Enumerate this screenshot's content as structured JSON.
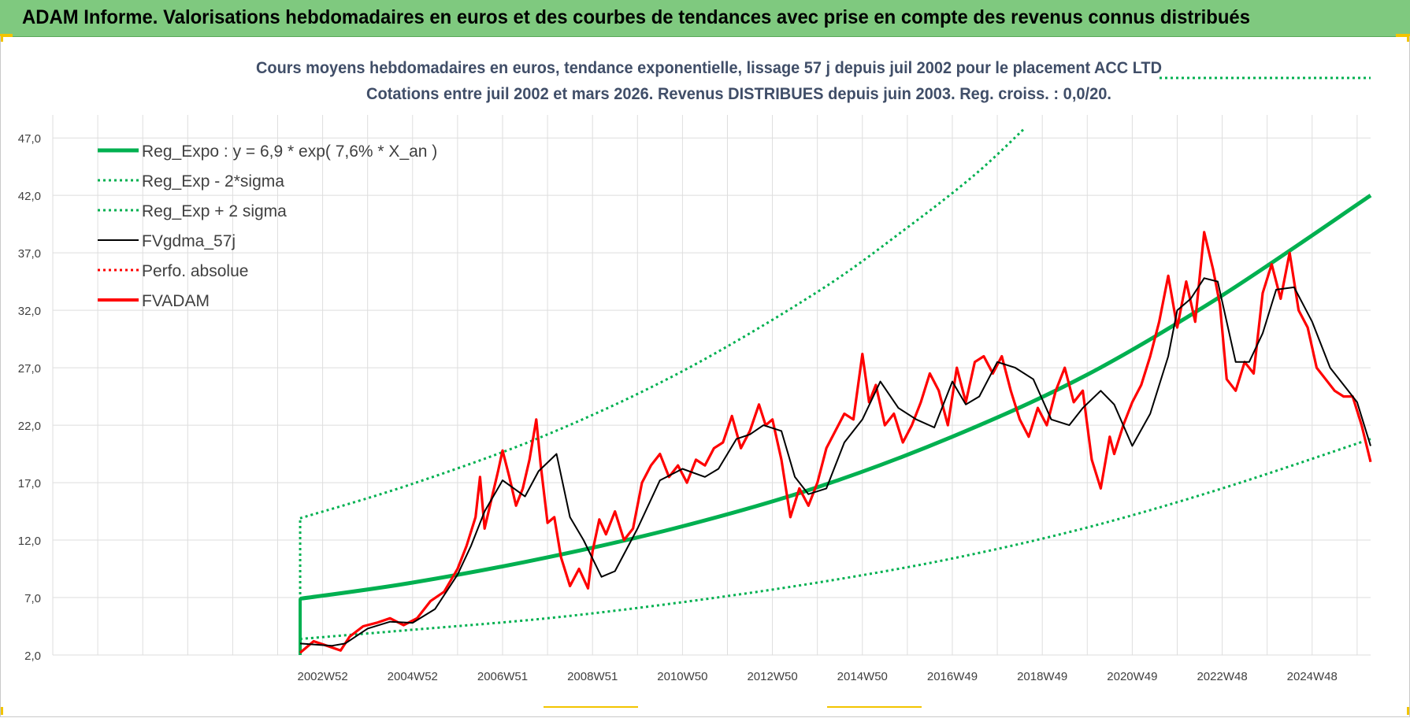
{
  "header": {
    "title": "ADAM Informe. Valorisations hebdomadaires en euros et des courbes de tendances avec prise en compte des revenus connus distribués"
  },
  "chart_data": {
    "type": "line",
    "title": "Cours moyens hebdomadaires en euros, tendance exponentielle, lissage 57 j depuis juil 2002 pour le placement ACC LTD",
    "subtitle": "Cotations entre juil 2002 et mars 2026. Revenus DISTRIBUES depuis juin 2003. Reg. croiss. : 0,0/20.",
    "xlabel": "",
    "ylabel": "",
    "ylim": [
      2,
      49
    ],
    "xlim": [
      1997.0,
      2026.3
    ],
    "grid": true,
    "legend_position": "top-left",
    "y_ticks": [
      "2,0",
      "7,0",
      "12,0",
      "17,0",
      "22,0",
      "27,0",
      "32,0",
      "37,0",
      "42,0",
      "47,0"
    ],
    "y_tick_values": [
      2,
      7,
      12,
      17,
      22,
      27,
      32,
      37,
      42,
      47
    ],
    "x_ticks": [
      "2002W52",
      "2004W52",
      "2006W51",
      "2008W51",
      "2010W50",
      "2012W50",
      "2014W50",
      "2016W49",
      "2018W49",
      "2020W49",
      "2022W48",
      "2024W48"
    ],
    "x_tick_positions": [
      2003.0,
      2005.0,
      2007.0,
      2009.0,
      2011.0,
      2013.0,
      2015.0,
      2017.0,
      2019.0,
      2021.0,
      2023.0,
      2025.0
    ],
    "series": [
      {
        "name": "Reg_Expo : y = 6,9 * exp( 7,6% *  X_an )",
        "color": "#00b050",
        "style": "solid-thick",
        "x": [
          2002.5,
          2005.0,
          2008.0,
          2011.0,
          2014.0,
          2017.0,
          2020.0,
          2023.0,
          2026.3
        ],
        "values": [
          6.9,
          8.3,
          10.5,
          13.2,
          16.6,
          21.0,
          26.4,
          33.3,
          42.0
        ]
      },
      {
        "name": "Reg_Exp - 2*sigma",
        "color": "#00b050",
        "style": "dotted",
        "x": [
          2002.5,
          2005.0,
          2008.0,
          2011.0,
          2014.0,
          2017.0,
          2020.0,
          2023.0,
          2026.3
        ],
        "values": [
          3.4,
          4.2,
          5.2,
          6.6,
          8.3,
          10.4,
          13.1,
          16.5,
          20.8
        ]
      },
      {
        "name": "Reg_Exp + 2 sigma",
        "color": "#00b050",
        "style": "dotted",
        "x": [
          2002.5,
          2005.0,
          2008.0,
          2011.0,
          2014.0,
          2016.0,
          2017.5,
          2018.6
        ],
        "values": [
          13.9,
          16.9,
          21.2,
          26.7,
          33.6,
          39.2,
          43.8,
          47.8
        ]
      },
      {
        "name": "FVgdma_57j",
        "color": "#000000",
        "style": "solid",
        "x": [
          2002.5,
          2003.2,
          2003.5,
          2004.0,
          2004.5,
          2005.0,
          2005.5,
          2006.0,
          2006.3,
          2006.6,
          2007.0,
          2007.5,
          2007.8,
          2008.2,
          2008.5,
          2008.8,
          2009.2,
          2009.5,
          2010.0,
          2010.5,
          2011.0,
          2011.5,
          2011.8,
          2012.2,
          2012.5,
          2012.8,
          2013.2,
          2013.5,
          2013.8,
          2014.2,
          2014.6,
          2015.0,
          2015.4,
          2015.8,
          2016.2,
          2016.6,
          2017.0,
          2017.3,
          2017.6,
          2018.0,
          2018.4,
          2018.8,
          2019.2,
          2019.6,
          2019.9,
          2020.3,
          2020.6,
          2021.0,
          2021.4,
          2021.8,
          2022.0,
          2022.3,
          2022.6,
          2022.9,
          2023.3,
          2023.6,
          2023.9,
          2024.2,
          2024.6,
          2025.0,
          2025.4,
          2025.8,
          2026.0,
          2026.3
        ],
        "values": [
          3.0,
          2.8,
          3.0,
          4.3,
          4.9,
          4.8,
          6.0,
          9.0,
          11.5,
          14.5,
          17.2,
          15.8,
          18.0,
          19.5,
          14.0,
          12.0,
          8.8,
          9.3,
          13.0,
          17.2,
          18.2,
          17.5,
          18.2,
          20.8,
          21.2,
          22.0,
          21.5,
          17.5,
          16.0,
          16.5,
          20.5,
          22.5,
          25.8,
          23.5,
          22.5,
          21.8,
          25.8,
          23.8,
          24.5,
          27.5,
          27.0,
          26.0,
          22.5,
          22.0,
          23.5,
          25.0,
          23.8,
          20.2,
          23.0,
          28.0,
          32.0,
          33.0,
          34.8,
          34.5,
          27.5,
          27.5,
          30.0,
          33.8,
          34.0,
          31.0,
          27.0,
          25.0,
          24.0,
          20.2
        ]
      },
      {
        "name": "Perfo. absolue",
        "color": "#ff0000",
        "style": "dotted",
        "x": [],
        "values": []
      },
      {
        "name": "FVADAM",
        "color": "#ff0000",
        "style": "solid-thick",
        "x": [
          2002.5,
          2002.8,
          2003.1,
          2003.4,
          2003.6,
          2003.9,
          2004.2,
          2004.5,
          2004.8,
          2005.1,
          2005.4,
          2005.7,
          2006.0,
          2006.2,
          2006.4,
          2006.5,
          2006.6,
          2006.75,
          2006.9,
          2007.0,
          2007.15,
          2007.3,
          2007.45,
          2007.6,
          2007.75,
          2007.85,
          2008.0,
          2008.15,
          2008.3,
          2008.5,
          2008.7,
          2008.9,
          2009.0,
          2009.15,
          2009.3,
          2009.5,
          2009.7,
          2009.9,
          2010.1,
          2010.3,
          2010.5,
          2010.7,
          2010.9,
          2011.1,
          2011.3,
          2011.5,
          2011.7,
          2011.9,
          2012.1,
          2012.3,
          2012.5,
          2012.7,
          2012.85,
          2013.0,
          2013.2,
          2013.4,
          2013.6,
          2013.8,
          2014.0,
          2014.2,
          2014.4,
          2014.6,
          2014.8,
          2015.0,
          2015.15,
          2015.3,
          2015.5,
          2015.7,
          2015.9,
          2016.1,
          2016.3,
          2016.5,
          2016.7,
          2016.9,
          2017.1,
          2017.3,
          2017.5,
          2017.7,
          2017.9,
          2018.1,
          2018.3,
          2018.5,
          2018.7,
          2018.9,
          2019.1,
          2019.3,
          2019.5,
          2019.7,
          2019.9,
          2020.1,
          2020.3,
          2020.5,
          2020.6,
          2020.8,
          2021.0,
          2021.2,
          2021.4,
          2021.6,
          2021.8,
          2022.0,
          2022.2,
          2022.4,
          2022.6,
          2022.8,
          2022.95,
          2023.1,
          2023.3,
          2023.5,
          2023.7,
          2023.9,
          2024.1,
          2024.3,
          2024.5,
          2024.7,
          2024.9,
          2025.1,
          2025.3,
          2025.5,
          2025.7,
          2025.9,
          2026.1,
          2026.3
        ],
        "values": [
          2.2,
          3.2,
          2.8,
          2.4,
          3.6,
          4.5,
          4.8,
          5.2,
          4.6,
          5.2,
          6.7,
          7.5,
          9.5,
          11.5,
          14.0,
          17.5,
          13.0,
          15.5,
          18.0,
          19.8,
          17.5,
          15.0,
          16.5,
          19.0,
          22.5,
          18.5,
          13.5,
          14.0,
          10.5,
          8.0,
          9.5,
          7.8,
          11.0,
          13.8,
          12.5,
          14.5,
          12.0,
          13.0,
          17.0,
          18.5,
          19.5,
          17.5,
          18.5,
          17.0,
          19.0,
          18.5,
          20.0,
          20.5,
          22.8,
          20.0,
          21.5,
          23.8,
          22.0,
          22.5,
          19.0,
          14.0,
          16.5,
          15.0,
          17.0,
          20.0,
          21.5,
          23.0,
          22.5,
          28.2,
          24.0,
          25.5,
          22.0,
          23.0,
          20.5,
          22.0,
          24.0,
          26.5,
          25.0,
          22.0,
          27.0,
          24.0,
          27.5,
          28.0,
          26.5,
          28.0,
          25.0,
          22.5,
          21.0,
          23.5,
          22.0,
          25.0,
          27.0,
          24.0,
          25.0,
          19.0,
          16.5,
          21.0,
          19.5,
          22.0,
          24.0,
          25.5,
          28.0,
          31.0,
          35.0,
          30.5,
          34.5,
          31.0,
          38.8,
          35.5,
          32.5,
          26.0,
          25.0,
          27.5,
          26.5,
          33.5,
          36.0,
          33.0,
          37.0,
          32.0,
          30.5,
          27.0,
          26.0,
          25.0,
          24.5,
          24.5,
          22.0,
          18.8
        ]
      }
    ]
  }
}
